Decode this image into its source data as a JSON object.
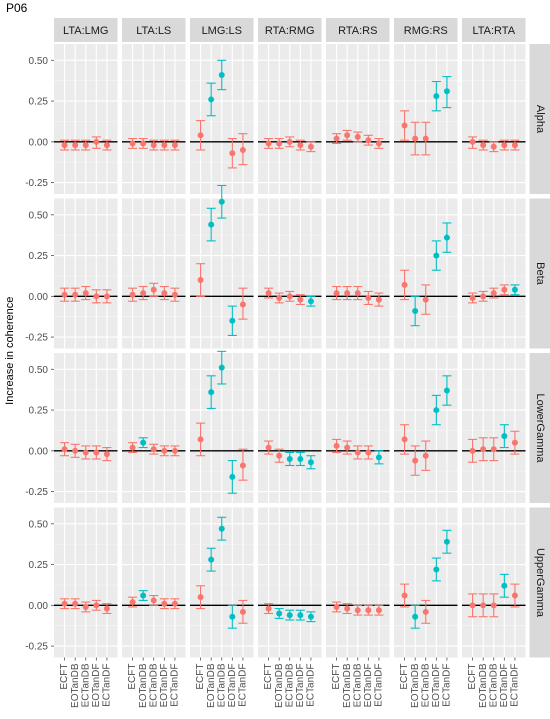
{
  "chart_data": {
    "type": "scatter",
    "title": "P06",
    "ylabel": "Increase in coherence",
    "xlabel": "",
    "categories": [
      "ECFT",
      "EOTanDB",
      "ECTanDB",
      "EOTanDF",
      "ECTanDF"
    ],
    "column_facets": [
      "LTA:LMG",
      "LTA:LS",
      "LMG:LS",
      "RTA:RMG",
      "RTA:RS",
      "RMG:RS",
      "LTA:RTA"
    ],
    "row_facets": [
      "Alpha",
      "Beta",
      "LowerGamma",
      "UpperGamma"
    ],
    "ylim": [
      -0.32,
      0.6
    ],
    "y_ticks": [
      -0.25,
      0,
      0.25,
      0.5
    ],
    "y_tick_labels": [
      "-0.25",
      "0.00",
      "0.25",
      "0.50"
    ],
    "reference_line_y": 0,
    "grid": true,
    "colors": {
      "not_significant": "#F8766D",
      "significant": "#00BFC4",
      "panel_bg": "#EBEBEB",
      "strip_bg": "#D9D9D9"
    },
    "facets": {
      "Alpha": {
        "LTA:LMG": [
          {
            "y": -0.02,
            "lo": -0.05,
            "hi": 0.01,
            "sig": false
          },
          {
            "y": -0.02,
            "lo": -0.05,
            "hi": 0.01,
            "sig": false
          },
          {
            "y": -0.02,
            "lo": -0.05,
            "hi": 0.01,
            "sig": false
          },
          {
            "y": 0.0,
            "lo": -0.04,
            "hi": 0.03,
            "sig": false
          },
          {
            "y": -0.02,
            "lo": -0.05,
            "hi": 0.01,
            "sig": false
          }
        ],
        "LTA:LS": [
          {
            "y": -0.01,
            "lo": -0.04,
            "hi": 0.02,
            "sig": false
          },
          {
            "y": -0.01,
            "lo": -0.04,
            "hi": 0.02,
            "sig": false
          },
          {
            "y": -0.02,
            "lo": -0.05,
            "hi": 0.01,
            "sig": false
          },
          {
            "y": -0.02,
            "lo": -0.05,
            "hi": 0.01,
            "sig": false
          },
          {
            "y": -0.02,
            "lo": -0.05,
            "hi": 0.01,
            "sig": false
          }
        ],
        "LMG:LS": [
          {
            "y": 0.04,
            "lo": -0.05,
            "hi": 0.13,
            "sig": false
          },
          {
            "y": 0.26,
            "lo": 0.16,
            "hi": 0.36,
            "sig": true
          },
          {
            "y": 0.41,
            "lo": 0.32,
            "hi": 0.5,
            "sig": true
          },
          {
            "y": -0.07,
            "lo": -0.16,
            "hi": 0.02,
            "sig": false
          },
          {
            "y": -0.05,
            "lo": -0.14,
            "hi": 0.05,
            "sig": false
          }
        ],
        "RTA:RMG": [
          {
            "y": -0.01,
            "lo": -0.04,
            "hi": 0.02,
            "sig": false
          },
          {
            "y": -0.01,
            "lo": -0.04,
            "hi": 0.02,
            "sig": false
          },
          {
            "y": 0.0,
            "lo": -0.03,
            "hi": 0.03,
            "sig": false
          },
          {
            "y": -0.02,
            "lo": -0.05,
            "hi": 0.01,
            "sig": false
          },
          {
            "y": -0.03,
            "lo": -0.06,
            "hi": 0.0,
            "sig": false
          }
        ],
        "RTA:RS": [
          {
            "y": 0.02,
            "lo": -0.01,
            "hi": 0.05,
            "sig": false
          },
          {
            "y": 0.04,
            "lo": 0.01,
            "hi": 0.07,
            "sig": false
          },
          {
            "y": 0.03,
            "lo": 0.0,
            "hi": 0.06,
            "sig": false
          },
          {
            "y": 0.01,
            "lo": -0.02,
            "hi": 0.04,
            "sig": false
          },
          {
            "y": -0.01,
            "lo": -0.04,
            "hi": 0.02,
            "sig": false
          }
        ],
        "RMG:RS": [
          {
            "y": 0.1,
            "lo": 0.01,
            "hi": 0.19,
            "sig": false
          },
          {
            "y": 0.02,
            "lo": -0.08,
            "hi": 0.12,
            "sig": false
          },
          {
            "y": 0.02,
            "lo": -0.08,
            "hi": 0.12,
            "sig": false
          },
          {
            "y": 0.28,
            "lo": 0.19,
            "hi": 0.37,
            "sig": true
          },
          {
            "y": 0.31,
            "lo": 0.21,
            "hi": 0.4,
            "sig": true
          }
        ],
        "LTA:RTA": [
          {
            "y": 0.0,
            "lo": -0.04,
            "hi": 0.03,
            "sig": false
          },
          {
            "y": -0.02,
            "lo": -0.05,
            "hi": 0.01,
            "sig": false
          },
          {
            "y": -0.03,
            "lo": -0.06,
            "hi": 0.0,
            "sig": false
          },
          {
            "y": -0.02,
            "lo": -0.05,
            "hi": 0.01,
            "sig": false
          },
          {
            "y": -0.02,
            "lo": -0.05,
            "hi": 0.01,
            "sig": false
          }
        ]
      },
      "Beta": {
        "LTA:LMG": [
          {
            "y": 0.01,
            "lo": -0.03,
            "hi": 0.05,
            "sig": false
          },
          {
            "y": 0.01,
            "lo": -0.03,
            "hi": 0.05,
            "sig": false
          },
          {
            "y": 0.02,
            "lo": -0.02,
            "hi": 0.06,
            "sig": false
          },
          {
            "y": 0.0,
            "lo": -0.04,
            "hi": 0.04,
            "sig": false
          },
          {
            "y": 0.0,
            "lo": -0.04,
            "hi": 0.04,
            "sig": false
          }
        ],
        "LTA:LS": [
          {
            "y": 0.01,
            "lo": -0.03,
            "hi": 0.05,
            "sig": false
          },
          {
            "y": 0.02,
            "lo": -0.02,
            "hi": 0.06,
            "sig": false
          },
          {
            "y": 0.04,
            "lo": 0.0,
            "hi": 0.08,
            "sig": false
          },
          {
            "y": 0.02,
            "lo": -0.02,
            "hi": 0.06,
            "sig": false
          },
          {
            "y": 0.01,
            "lo": -0.03,
            "hi": 0.05,
            "sig": false
          }
        ],
        "LMG:LS": [
          {
            "y": 0.1,
            "lo": 0.0,
            "hi": 0.2,
            "sig": false
          },
          {
            "y": 0.44,
            "lo": 0.34,
            "hi": 0.54,
            "sig": true
          },
          {
            "y": 0.58,
            "lo": 0.48,
            "hi": 0.68,
            "sig": true
          },
          {
            "y": -0.15,
            "lo": -0.24,
            "hi": -0.06,
            "sig": true
          },
          {
            "y": -0.05,
            "lo": -0.14,
            "hi": 0.05,
            "sig": false
          }
        ],
        "RTA:RMG": [
          {
            "y": 0.02,
            "lo": -0.01,
            "hi": 0.05,
            "sig": false
          },
          {
            "y": -0.01,
            "lo": -0.04,
            "hi": 0.02,
            "sig": false
          },
          {
            "y": 0.0,
            "lo": -0.03,
            "hi": 0.03,
            "sig": false
          },
          {
            "y": -0.02,
            "lo": -0.05,
            "hi": 0.01,
            "sig": false
          },
          {
            "y": -0.03,
            "lo": -0.06,
            "hi": 0.0,
            "sig": true
          }
        ],
        "RTA:RS": [
          {
            "y": 0.02,
            "lo": -0.02,
            "hi": 0.06,
            "sig": false
          },
          {
            "y": 0.02,
            "lo": -0.02,
            "hi": 0.06,
            "sig": false
          },
          {
            "y": 0.02,
            "lo": -0.02,
            "hi": 0.06,
            "sig": false
          },
          {
            "y": -0.01,
            "lo": -0.05,
            "hi": 0.03,
            "sig": false
          },
          {
            "y": -0.02,
            "lo": -0.06,
            "hi": 0.02,
            "sig": false
          }
        ],
        "RMG:RS": [
          {
            "y": 0.07,
            "lo": -0.02,
            "hi": 0.16,
            "sig": false
          },
          {
            "y": -0.09,
            "lo": -0.18,
            "hi": 0.0,
            "sig": true
          },
          {
            "y": -0.02,
            "lo": -0.11,
            "hi": 0.07,
            "sig": false
          },
          {
            "y": 0.25,
            "lo": 0.16,
            "hi": 0.34,
            "sig": true
          },
          {
            "y": 0.36,
            "lo": 0.27,
            "hi": 0.45,
            "sig": true
          }
        ],
        "LTA:RTA": [
          {
            "y": -0.01,
            "lo": -0.04,
            "hi": 0.02,
            "sig": false
          },
          {
            "y": 0.0,
            "lo": -0.03,
            "hi": 0.03,
            "sig": false
          },
          {
            "y": 0.02,
            "lo": -0.01,
            "hi": 0.05,
            "sig": false
          },
          {
            "y": 0.04,
            "lo": 0.01,
            "hi": 0.07,
            "sig": false
          },
          {
            "y": 0.04,
            "lo": 0.01,
            "hi": 0.07,
            "sig": true
          }
        ]
      },
      "LowerGamma": {
        "LTA:LMG": [
          {
            "y": 0.01,
            "lo": -0.03,
            "hi": 0.05,
            "sig": false
          },
          {
            "y": 0.0,
            "lo": -0.04,
            "hi": 0.04,
            "sig": false
          },
          {
            "y": -0.01,
            "lo": -0.05,
            "hi": 0.03,
            "sig": false
          },
          {
            "y": -0.01,
            "lo": -0.05,
            "hi": 0.03,
            "sig": false
          },
          {
            "y": -0.02,
            "lo": -0.06,
            "hi": 0.02,
            "sig": false
          }
        ],
        "LTA:LS": [
          {
            "y": 0.02,
            "lo": -0.01,
            "hi": 0.05,
            "sig": false
          },
          {
            "y": 0.05,
            "lo": 0.02,
            "hi": 0.08,
            "sig": true
          },
          {
            "y": 0.01,
            "lo": -0.02,
            "hi": 0.04,
            "sig": false
          },
          {
            "y": 0.0,
            "lo": -0.03,
            "hi": 0.03,
            "sig": false
          },
          {
            "y": 0.0,
            "lo": -0.03,
            "hi": 0.03,
            "sig": false
          }
        ],
        "LMG:LS": [
          {
            "y": 0.07,
            "lo": -0.03,
            "hi": 0.17,
            "sig": false
          },
          {
            "y": 0.36,
            "lo": 0.26,
            "hi": 0.46,
            "sig": true
          },
          {
            "y": 0.51,
            "lo": 0.41,
            "hi": 0.61,
            "sig": true
          },
          {
            "y": -0.16,
            "lo": -0.26,
            "hi": -0.06,
            "sig": true
          },
          {
            "y": -0.09,
            "lo": -0.18,
            "hi": 0.01,
            "sig": false
          }
        ],
        "RTA:RMG": [
          {
            "y": 0.02,
            "lo": -0.02,
            "hi": 0.06,
            "sig": false
          },
          {
            "y": -0.03,
            "lo": -0.07,
            "hi": 0.01,
            "sig": false
          },
          {
            "y": -0.05,
            "lo": -0.09,
            "hi": -0.01,
            "sig": true
          },
          {
            "y": -0.05,
            "lo": -0.09,
            "hi": -0.01,
            "sig": true
          },
          {
            "y": -0.07,
            "lo": -0.11,
            "hi": -0.03,
            "sig": true
          }
        ],
        "RTA:RS": [
          {
            "y": 0.03,
            "lo": -0.01,
            "hi": 0.07,
            "sig": false
          },
          {
            "y": 0.02,
            "lo": -0.02,
            "hi": 0.06,
            "sig": false
          },
          {
            "y": -0.01,
            "lo": -0.05,
            "hi": 0.03,
            "sig": false
          },
          {
            "y": -0.01,
            "lo": -0.05,
            "hi": 0.03,
            "sig": false
          },
          {
            "y": -0.04,
            "lo": -0.08,
            "hi": 0.0,
            "sig": true
          }
        ],
        "RMG:RS": [
          {
            "y": 0.07,
            "lo": -0.02,
            "hi": 0.16,
            "sig": false
          },
          {
            "y": -0.06,
            "lo": -0.15,
            "hi": 0.03,
            "sig": false
          },
          {
            "y": -0.03,
            "lo": -0.12,
            "hi": 0.06,
            "sig": false
          },
          {
            "y": 0.25,
            "lo": 0.16,
            "hi": 0.34,
            "sig": true
          },
          {
            "y": 0.37,
            "lo": 0.28,
            "hi": 0.46,
            "sig": true
          }
        ],
        "LTA:RTA": [
          {
            "y": 0.0,
            "lo": -0.07,
            "hi": 0.07,
            "sig": false
          },
          {
            "y": 0.01,
            "lo": -0.06,
            "hi": 0.08,
            "sig": false
          },
          {
            "y": 0.01,
            "lo": -0.06,
            "hi": 0.08,
            "sig": false
          },
          {
            "y": 0.09,
            "lo": 0.02,
            "hi": 0.16,
            "sig": true
          },
          {
            "y": 0.05,
            "lo": -0.02,
            "hi": 0.12,
            "sig": false
          }
        ]
      },
      "UpperGamma": {
        "LTA:LMG": [
          {
            "y": 0.01,
            "lo": -0.02,
            "hi": 0.04,
            "sig": false
          },
          {
            "y": 0.01,
            "lo": -0.02,
            "hi": 0.04,
            "sig": false
          },
          {
            "y": -0.01,
            "lo": -0.04,
            "hi": 0.02,
            "sig": false
          },
          {
            "y": 0.0,
            "lo": -0.03,
            "hi": 0.03,
            "sig": false
          },
          {
            "y": -0.02,
            "lo": -0.05,
            "hi": 0.01,
            "sig": false
          }
        ],
        "LTA:LS": [
          {
            "y": 0.02,
            "lo": -0.01,
            "hi": 0.05,
            "sig": false
          },
          {
            "y": 0.06,
            "lo": 0.03,
            "hi": 0.09,
            "sig": true
          },
          {
            "y": 0.03,
            "lo": 0.0,
            "hi": 0.06,
            "sig": false
          },
          {
            "y": 0.01,
            "lo": -0.02,
            "hi": 0.04,
            "sig": false
          },
          {
            "y": 0.01,
            "lo": -0.02,
            "hi": 0.04,
            "sig": false
          }
        ],
        "LMG:LS": [
          {
            "y": 0.05,
            "lo": -0.02,
            "hi": 0.12,
            "sig": false
          },
          {
            "y": 0.28,
            "lo": 0.21,
            "hi": 0.35,
            "sig": true
          },
          {
            "y": 0.47,
            "lo": 0.4,
            "hi": 0.54,
            "sig": true
          },
          {
            "y": -0.07,
            "lo": -0.14,
            "hi": 0.0,
            "sig": true
          },
          {
            "y": -0.04,
            "lo": -0.11,
            "hi": 0.03,
            "sig": false
          }
        ],
        "RTA:RMG": [
          {
            "y": -0.02,
            "lo": -0.05,
            "hi": 0.01,
            "sig": false
          },
          {
            "y": -0.05,
            "lo": -0.08,
            "hi": -0.02,
            "sig": true
          },
          {
            "y": -0.06,
            "lo": -0.09,
            "hi": -0.03,
            "sig": true
          },
          {
            "y": -0.06,
            "lo": -0.09,
            "hi": -0.03,
            "sig": true
          },
          {
            "y": -0.07,
            "lo": -0.1,
            "hi": -0.04,
            "sig": true
          }
        ],
        "RTA:RS": [
          {
            "y": -0.01,
            "lo": -0.04,
            "hi": 0.02,
            "sig": false
          },
          {
            "y": -0.02,
            "lo": -0.05,
            "hi": 0.01,
            "sig": false
          },
          {
            "y": -0.03,
            "lo": -0.06,
            "hi": 0.0,
            "sig": false
          },
          {
            "y": -0.03,
            "lo": -0.06,
            "hi": 0.0,
            "sig": false
          },
          {
            "y": -0.03,
            "lo": -0.06,
            "hi": 0.0,
            "sig": false
          }
        ],
        "RMG:RS": [
          {
            "y": 0.06,
            "lo": -0.01,
            "hi": 0.13,
            "sig": false
          },
          {
            "y": -0.07,
            "lo": -0.14,
            "hi": 0.0,
            "sig": true
          },
          {
            "y": -0.04,
            "lo": -0.11,
            "hi": 0.03,
            "sig": false
          },
          {
            "y": 0.22,
            "lo": 0.15,
            "hi": 0.29,
            "sig": true
          },
          {
            "y": 0.39,
            "lo": 0.32,
            "hi": 0.46,
            "sig": true
          }
        ],
        "LTA:RTA": [
          {
            "y": 0.0,
            "lo": -0.07,
            "hi": 0.07,
            "sig": false
          },
          {
            "y": 0.0,
            "lo": -0.07,
            "hi": 0.07,
            "sig": false
          },
          {
            "y": 0.0,
            "lo": -0.07,
            "hi": 0.07,
            "sig": false
          },
          {
            "y": 0.12,
            "lo": 0.05,
            "hi": 0.19,
            "sig": true
          },
          {
            "y": 0.06,
            "lo": -0.01,
            "hi": 0.13,
            "sig": false
          }
        ]
      }
    }
  }
}
